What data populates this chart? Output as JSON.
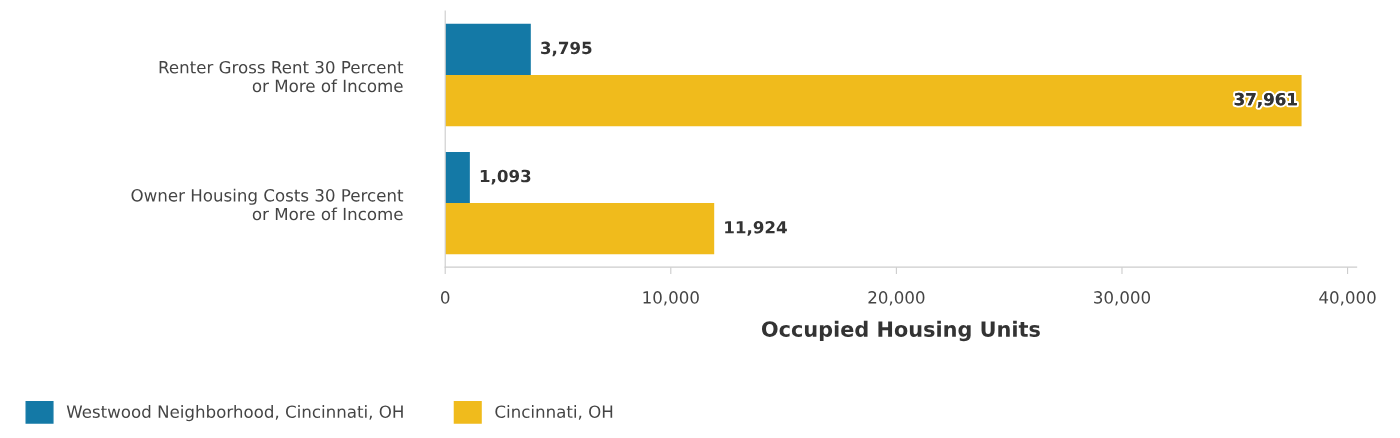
{
  "chart_data": {
    "type": "bar",
    "orientation": "horizontal",
    "categories": [
      "Renter Gross Rent 30 Percent or More of Income",
      "Owner Housing Costs 30 Percent or More of Income"
    ],
    "series": [
      {
        "name": "Westwood Neighborhood, Cincinnati, OH",
        "color": "#1479a6",
        "values": [
          3795,
          1093
        ],
        "value_labels": [
          "3,795",
          "1,093"
        ]
      },
      {
        "name": "Cincinnati, OH",
        "color": "#f0bb1c",
        "values": [
          37961,
          11924
        ],
        "value_labels": [
          "37,961",
          "11,924"
        ]
      }
    ],
    "xlabel": "Occupied Housing Units",
    "xlim": [
      0,
      40400
    ],
    "xticks": [
      {
        "value": 0,
        "label": "0"
      },
      {
        "value": 10000,
        "label": "10,000"
      },
      {
        "value": 20000,
        "label": "20,000"
      },
      {
        "value": 30000,
        "label": "30,000"
      },
      {
        "value": 40000,
        "label": "40,000"
      }
    ],
    "grid": false,
    "legend": "bottom left"
  }
}
